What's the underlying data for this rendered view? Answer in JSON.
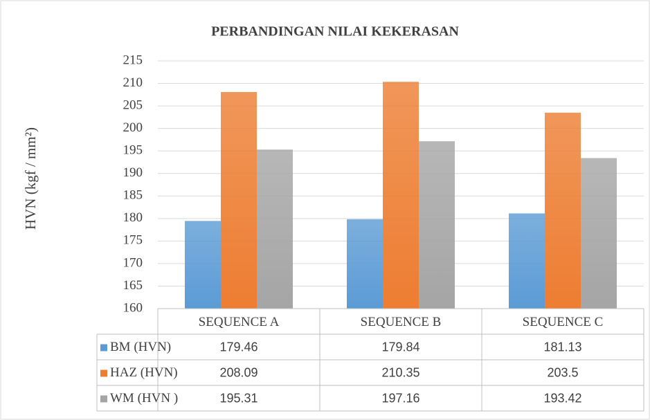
{
  "chart_data": {
    "type": "bar",
    "title": "PERBANDINGAN NILAI KEKERASAN",
    "y_label": "HVN (kgf / mm²)",
    "categories": [
      "SEQUENCE A",
      "SEQUENCE B",
      "SEQUENCE C"
    ],
    "series": [
      {
        "name": "BM (HVN)",
        "color": "#5b9bd5",
        "values": [
          179.46,
          179.84,
          181.13
        ]
      },
      {
        "name": "HAZ (HVN)",
        "color": "#ed7d31",
        "values": [
          208.09,
          210.35,
          203.5
        ]
      },
      {
        "name": "WM (HVN )",
        "color": "#a5a5a5",
        "values": [
          195.31,
          197.16,
          193.42
        ]
      }
    ],
    "ylim": [
      160,
      215
    ],
    "yticks": [
      160,
      165,
      170,
      175,
      180,
      185,
      190,
      195,
      200,
      205,
      210,
      215
    ],
    "grid": true,
    "data_table": true
  }
}
